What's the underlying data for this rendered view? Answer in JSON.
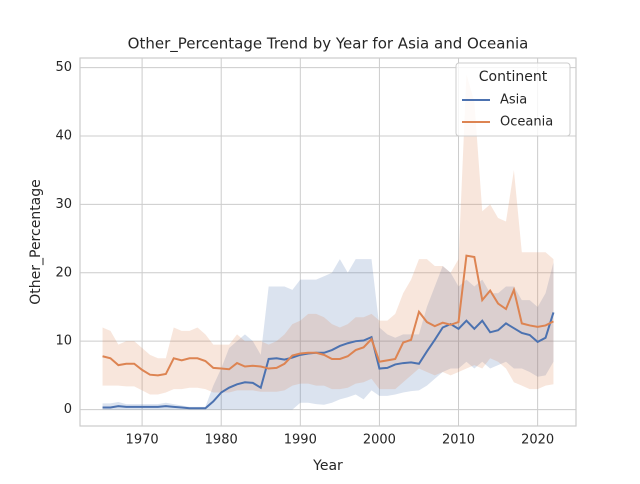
{
  "chart_data": {
    "type": "line",
    "title": "Other_Percentage Trend by Year for Asia and Oceania",
    "x_label": "Year",
    "y_label": "Other_Percentage",
    "legend_title": "Continent",
    "legend": "upper right",
    "grid": true,
    "x": [
      1965,
      1966,
      1967,
      1968,
      1969,
      1970,
      1971,
      1972,
      1973,
      1974,
      1975,
      1976,
      1977,
      1978,
      1979,
      1980,
      1981,
      1982,
      1983,
      1984,
      1985,
      1986,
      1987,
      1988,
      1989,
      1990,
      1991,
      1992,
      1993,
      1994,
      1995,
      1996,
      1997,
      1998,
      1999,
      2000,
      2001,
      2002,
      2003,
      2004,
      2005,
      2006,
      2007,
      2008,
      2009,
      2010,
      2011,
      2012,
      2013,
      2014,
      2015,
      2016,
      2017,
      2018,
      2019,
      2020,
      2021,
      2022
    ],
    "xlim": [
      1962.15,
      2024.85
    ],
    "xticks": [
      1970,
      1980,
      1990,
      2000,
      2010,
      2020
    ],
    "ylim": [
      -2.4,
      51.4
    ],
    "yticks": [
      0,
      10,
      20,
      30,
      40,
      50
    ],
    "series": [
      {
        "name": "Asia",
        "color": "#4c72b0",
        "values": [
          0.3,
          0.3,
          0.5,
          0.4,
          0.4,
          0.4,
          0.4,
          0.4,
          0.5,
          0.4,
          0.3,
          0.2,
          0.2,
          0.2,
          1.2,
          2.5,
          3.2,
          3.7,
          4.0,
          3.9,
          3.2,
          7.4,
          7.5,
          7.3,
          7.6,
          8.0,
          8.2,
          8.3,
          8.3,
          8.7,
          9.3,
          9.7,
          10.0,
          10.1,
          10.6,
          6.0,
          6.1,
          6.6,
          6.8,
          6.9,
          6.7,
          8.5,
          10.2,
          12.0,
          12.5,
          11.8,
          13.0,
          11.8,
          13.0,
          11.3,
          11.6,
          12.6,
          11.9,
          11.2,
          10.9,
          9.9,
          10.5,
          14.2
        ],
        "ci_low": [
          0,
          0,
          0,
          0,
          0,
          0,
          0,
          0,
          0,
          0,
          0,
          0,
          0,
          0,
          0,
          0,
          0,
          0,
          0,
          0,
          0,
          0,
          0,
          0,
          0,
          1,
          1,
          0.8,
          0.7,
          1,
          1.5,
          1.8,
          2.2,
          1.5,
          2.8,
          2,
          2,
          2.2,
          2.5,
          2.7,
          2.8,
          3.5,
          4.5,
          5.5,
          6,
          6,
          7,
          6,
          7,
          6,
          6.5,
          7,
          6,
          6,
          5.5,
          4.8,
          5,
          7
        ],
        "ci_high": [
          0.9,
          0.9,
          1.1,
          0.8,
          0.8,
          0.8,
          0.8,
          0.8,
          1.0,
          0.8,
          0.6,
          0.4,
          0.4,
          0.4,
          3.5,
          6,
          9,
          10,
          11,
          10,
          8,
          18,
          18,
          18,
          17.5,
          19,
          19,
          19,
          19.5,
          20,
          22,
          20,
          22,
          22,
          22,
          12,
          11,
          10.5,
          11,
          11,
          11,
          15,
          18,
          21,
          20,
          18,
          19,
          18,
          19,
          17,
          17,
          18,
          18,
          16,
          16,
          15,
          17,
          21.5
        ]
      },
      {
        "name": "Oceania",
        "color": "#dd8452",
        "values": [
          7.8,
          7.5,
          6.5,
          6.7,
          6.7,
          5.8,
          5.1,
          5.0,
          5.2,
          7.5,
          7.2,
          7.5,
          7.5,
          7.1,
          6.1,
          6.0,
          5.9,
          6.8,
          6.3,
          6.4,
          6.3,
          6.0,
          6.1,
          6.7,
          7.9,
          8.2,
          8.3,
          8.3,
          8.0,
          7.4,
          7.4,
          7.8,
          8.7,
          9.1,
          10.3,
          7.0,
          7.2,
          7.4,
          9.8,
          10.2,
          14.3,
          12.8,
          12.2,
          12.7,
          12.4,
          12.8,
          22.5,
          22.3,
          16.0,
          17.4,
          15.5,
          14.7,
          17.5,
          12.6,
          12.3,
          12.1,
          12.3,
          12.9
        ],
        "ci_low": [
          3.5,
          3.5,
          3.5,
          3.4,
          3.4,
          2.8,
          2.2,
          2.2,
          2.5,
          3,
          3,
          3.2,
          3.2,
          3,
          2.5,
          2.5,
          2.5,
          2.8,
          2.8,
          2.8,
          2.6,
          2.6,
          2.6,
          2.8,
          3.5,
          3.8,
          3.8,
          3.5,
          3.5,
          3,
          3,
          3.2,
          3.8,
          4,
          4.5,
          3,
          3,
          3,
          4,
          5,
          6,
          5.5,
          5,
          5.5,
          5,
          5.5,
          6,
          6.5,
          6,
          7.5,
          7,
          6,
          4,
          3.5,
          3,
          3,
          3.5,
          3.7
        ],
        "ci_high": [
          12,
          11.5,
          9.5,
          10,
          10,
          9,
          8,
          7.5,
          7.5,
          12,
          11.5,
          11.5,
          12,
          11,
          9.5,
          9.5,
          9.5,
          11,
          10,
          10,
          10,
          9.5,
          10,
          11,
          12.5,
          13,
          14,
          14,
          13.5,
          12.5,
          12,
          12.5,
          13.5,
          13.5,
          14,
          13,
          13,
          14,
          17,
          19,
          22,
          22,
          21,
          21,
          20,
          22,
          49,
          45,
          29,
          30,
          28,
          27.5,
          35,
          23,
          23,
          23,
          23,
          22
        ]
      }
    ]
  }
}
